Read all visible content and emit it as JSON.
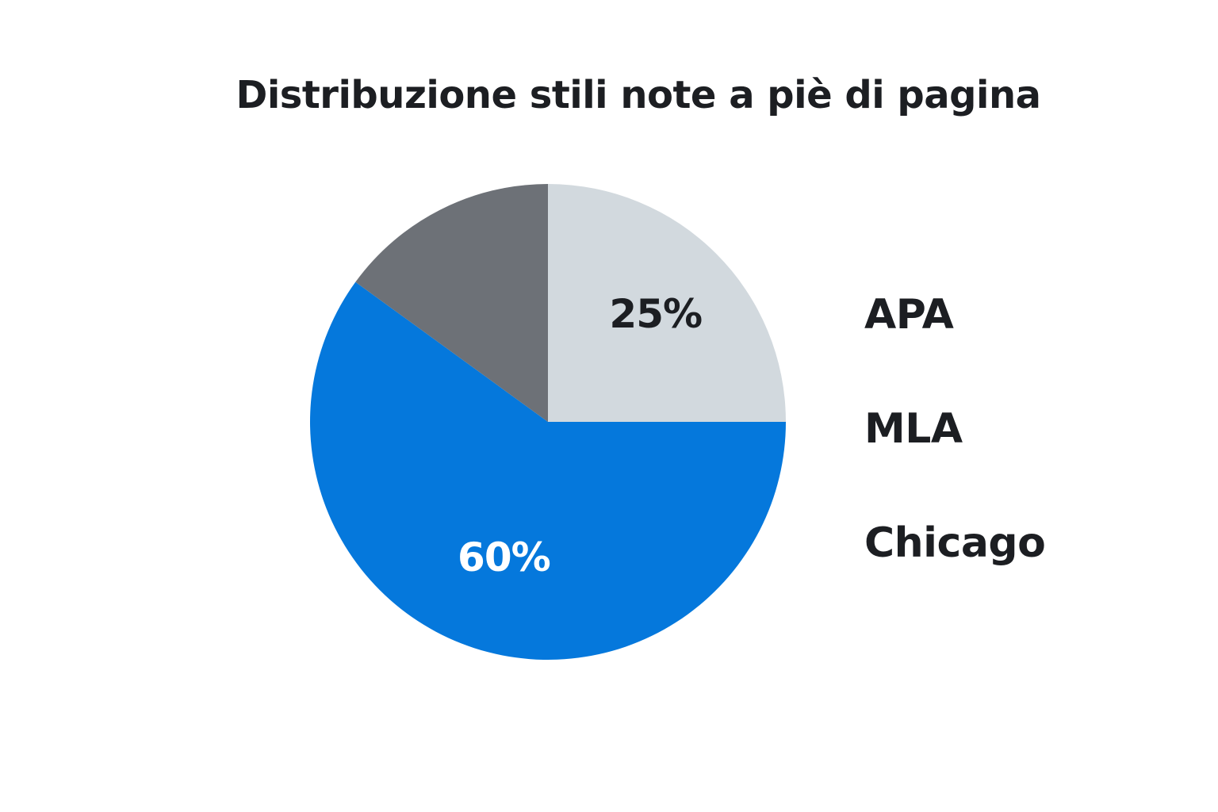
{
  "chart_data": {
    "type": "pie",
    "title": "Distribuzione stili note a piè di pagina",
    "slices": [
      {
        "name": "APA",
        "value": 25,
        "label": "25%",
        "color": "#d2d9de",
        "label_color": "#1c1e22"
      },
      {
        "name": "Chicago",
        "value": 60,
        "label": "60%",
        "color": "#0578dc",
        "label_color": "#ffffff"
      },
      {
        "name": "MLA",
        "value": 15,
        "label": "",
        "color": "#6d7177",
        "label_color": "#ffffff"
      }
    ],
    "legend": {
      "placement": "right",
      "entries": [
        "APA",
        "MLA",
        "Chicago"
      ]
    },
    "start_angle": "12 o'clock",
    "direction": "clockwise"
  }
}
